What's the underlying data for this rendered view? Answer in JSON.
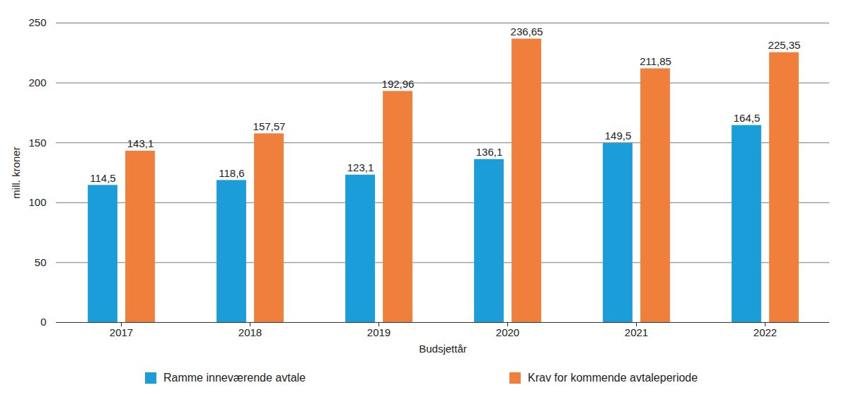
{
  "chart_data": {
    "type": "bar",
    "x_label": "Budsjettår",
    "y_label": "mill. kroner",
    "categories": [
      "2017",
      "2018",
      "2019",
      "2020",
      "2021",
      "2022"
    ],
    "series": [
      {
        "name": "Ramme inneværende avtale",
        "color": "#1a9dd9",
        "values": [
          114.5,
          118.6,
          123.1,
          136.1,
          149.5,
          164.5
        ],
        "value_labels": [
          "114,5",
          "118,6",
          "123,1",
          "136,1",
          "149,5",
          "164,5"
        ]
      },
      {
        "name": "Krav for kommende avtaleperiode",
        "color": "#f07f3c",
        "values": [
          143.1,
          157.57,
          192.96,
          236.65,
          211.85,
          225.35
        ],
        "value_labels": [
          "143,1",
          "157,57",
          "192,96",
          "236,65",
          "211,85",
          "225,35"
        ]
      }
    ],
    "ylim": [
      0,
      250
    ],
    "yticks": [
      0,
      50,
      100,
      150,
      200,
      250
    ],
    "grid": true,
    "data_labels": true,
    "legend": "bottom"
  }
}
